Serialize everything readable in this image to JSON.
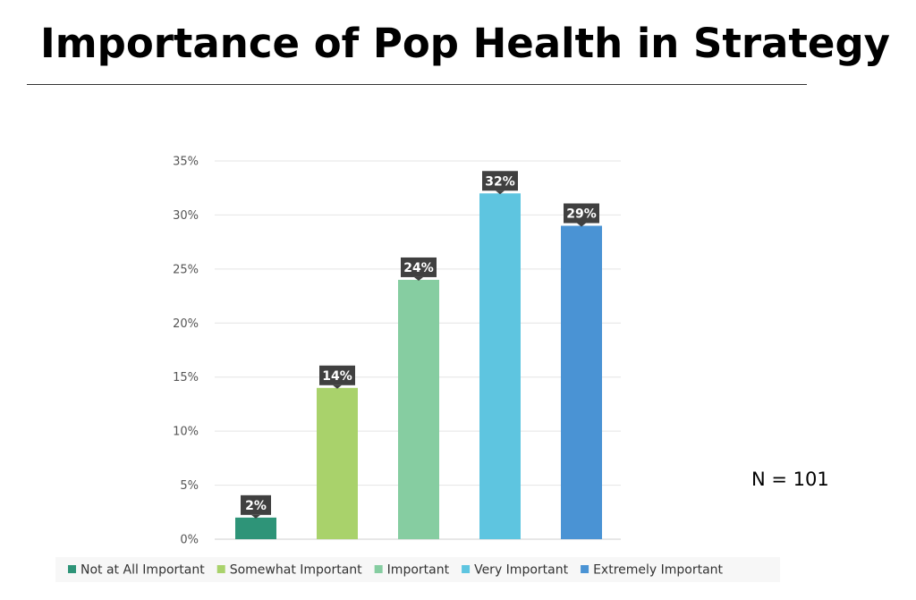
{
  "slide": {
    "title": "Importance of Pop Health in Strategy",
    "sample_size": "N = 101"
  },
  "chart_data": {
    "type": "bar",
    "title": "",
    "xlabel": "",
    "ylabel": "",
    "categories": [
      "Not at All Important",
      "Somewhat Important",
      "Important",
      "Very Important",
      "Extremely Important"
    ],
    "values": [
      2,
      14,
      24,
      32,
      29
    ],
    "value_format": "percent",
    "data_labels": [
      "2%",
      "14%",
      "24%",
      "32%",
      "29%"
    ],
    "ylim": [
      0,
      35
    ],
    "ytick_step": 5,
    "ytick_labels": [
      "0%",
      "5%",
      "10%",
      "15%",
      "20%",
      "25%",
      "30%",
      "35%"
    ],
    "grid": true,
    "legend_position": "bottom",
    "colors": [
      "#2e9478",
      "#a9d26b",
      "#86cda1",
      "#5ec5e0",
      "#4a93d4"
    ],
    "label_box_color": "#404040",
    "grid_color": "#e4e4e4"
  }
}
